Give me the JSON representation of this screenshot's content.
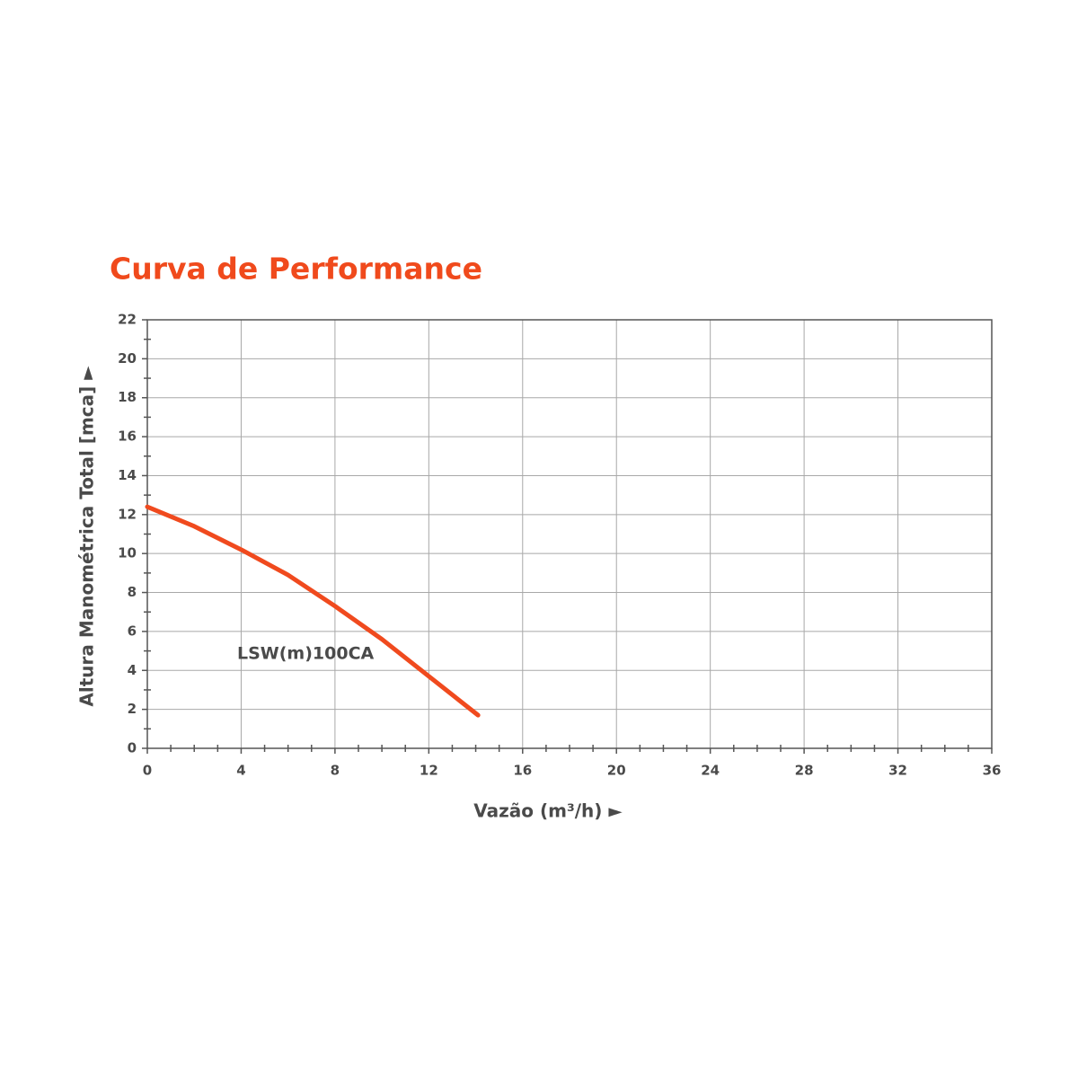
{
  "chart_data": {
    "type": "line",
    "title": "Curva de Performance",
    "x_label": "Vazão (m³/h) ►",
    "y_label": "Altura Manométrica Total [mca] ►",
    "x": [
      0,
      2,
      4,
      6,
      8,
      10,
      12,
      14.1
    ],
    "series": [
      {
        "name": "LSW(m)100CA",
        "color": "#f04a1e",
        "values": [
          12.4,
          11.4,
          10.2,
          8.9,
          7.3,
          5.6,
          3.7,
          1.7
        ]
      }
    ],
    "xlim": [
      0,
      36
    ],
    "xticks": [
      0,
      4,
      8,
      12,
      16,
      20,
      24,
      28,
      32,
      36
    ],
    "xminorticks": [
      1,
      2,
      3,
      5,
      6,
      7,
      9,
      10,
      11,
      13,
      14,
      15,
      17,
      18,
      19,
      21,
      22,
      23,
      25,
      26,
      27,
      29,
      30,
      31,
      33,
      34,
      35
    ],
    "ylim": [
      0,
      22
    ],
    "yticks": [
      0,
      2,
      4,
      6,
      8,
      10,
      12,
      14,
      16,
      18,
      20,
      22
    ],
    "yminorticks": [
      1,
      3,
      5,
      7,
      9,
      11,
      13,
      15,
      17,
      19,
      21
    ],
    "grid": true
  }
}
